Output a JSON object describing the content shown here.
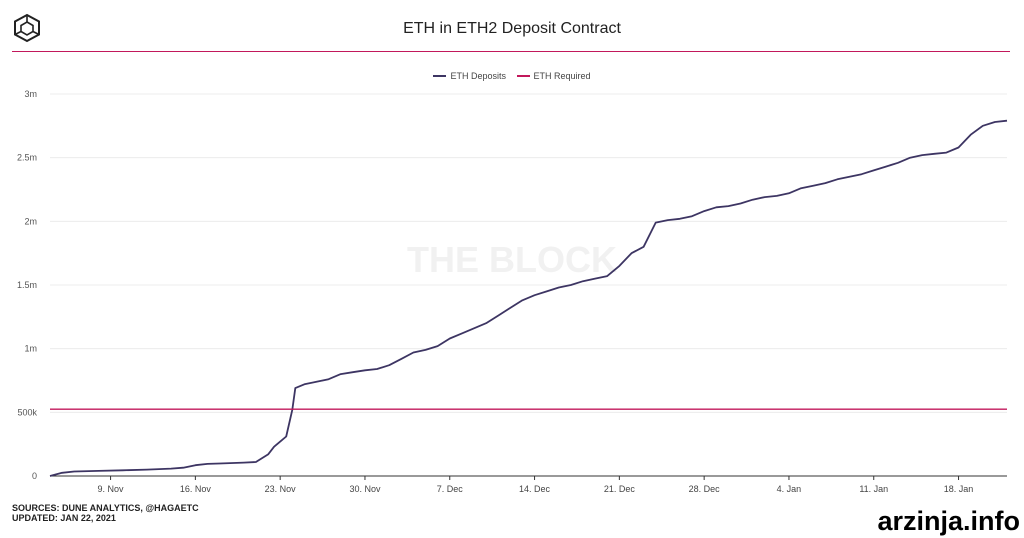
{
  "chart_data": {
    "type": "line",
    "title": "ETH in ETH2 Deposit Contract",
    "legend_position": "top-center",
    "grid": true,
    "x_range": [
      "Nov 4",
      "Jan 22"
    ],
    "x_ticks": [
      "9. Nov",
      "16. Nov",
      "23. Nov",
      "30. Nov",
      "7. Dec",
      "14. Dec",
      "21. Dec",
      "28. Dec",
      "4. Jan",
      "11. Jan",
      "18. Jan"
    ],
    "y_range": [
      0,
      3000000
    ],
    "y_ticks": [
      "0",
      "500k",
      "1m",
      "1.5m",
      "2m",
      "2.5m",
      "3m"
    ],
    "series": [
      {
        "name": "ETH Deposits",
        "color": "#3d3563",
        "points": [
          [
            "Nov 4",
            0
          ],
          [
            "Nov 5",
            25000
          ],
          [
            "Nov 6",
            35000
          ],
          [
            "Nov 8",
            40000
          ],
          [
            "Nov 10",
            45000
          ],
          [
            "Nov 12",
            50000
          ],
          [
            "Nov 14",
            58000
          ],
          [
            "Nov 15",
            65000
          ],
          [
            "Nov 16",
            85000
          ],
          [
            "Nov 17",
            95000
          ],
          [
            "Nov 18",
            98000
          ],
          [
            "Nov 20",
            105000
          ],
          [
            "Nov 21",
            110000
          ],
          [
            "Nov 22",
            170000
          ],
          [
            "Nov 22 12h",
            230000
          ],
          [
            "Nov 23",
            270000
          ],
          [
            "Nov 23 12h",
            310000
          ],
          [
            "Nov 24",
            520000
          ],
          [
            "Nov 24 6h",
            690000
          ],
          [
            "Nov 25",
            720000
          ],
          [
            "Nov 26",
            740000
          ],
          [
            "Nov 27",
            760000
          ],
          [
            "Nov 28",
            800000
          ],
          [
            "Nov 29",
            815000
          ],
          [
            "Nov 30",
            830000
          ],
          [
            "Dec 1",
            840000
          ],
          [
            "Dec 2",
            870000
          ],
          [
            "Dec 3",
            920000
          ],
          [
            "Dec 4",
            970000
          ],
          [
            "Dec 5",
            990000
          ],
          [
            "Dec 6",
            1020000
          ],
          [
            "Dec 7",
            1080000
          ],
          [
            "Dec 8",
            1120000
          ],
          [
            "Dec 9",
            1160000
          ],
          [
            "Dec 10",
            1200000
          ],
          [
            "Dec 11",
            1260000
          ],
          [
            "Dec 12",
            1320000
          ],
          [
            "Dec 13",
            1380000
          ],
          [
            "Dec 14",
            1420000
          ],
          [
            "Dec 15",
            1450000
          ],
          [
            "Dec 16",
            1480000
          ],
          [
            "Dec 17",
            1500000
          ],
          [
            "Dec 18",
            1530000
          ],
          [
            "Dec 19",
            1550000
          ],
          [
            "Dec 20",
            1570000
          ],
          [
            "Dec 21",
            1650000
          ],
          [
            "Dec 22",
            1750000
          ],
          [
            "Dec 23",
            1800000
          ],
          [
            "Dec 24",
            1990000
          ],
          [
            "Dec 25",
            2010000
          ],
          [
            "Dec 26",
            2020000
          ],
          [
            "Dec 27",
            2040000
          ],
          [
            "Dec 28",
            2080000
          ],
          [
            "Dec 29",
            2110000
          ],
          [
            "Dec 30",
            2120000
          ],
          [
            "Dec 31",
            2140000
          ],
          [
            "Jan 1",
            2170000
          ],
          [
            "Jan 2",
            2190000
          ],
          [
            "Jan 3",
            2200000
          ],
          [
            "Jan 4",
            2220000
          ],
          [
            "Jan 5",
            2260000
          ],
          [
            "Jan 6",
            2280000
          ],
          [
            "Jan 7",
            2300000
          ],
          [
            "Jan 8",
            2330000
          ],
          [
            "Jan 9",
            2350000
          ],
          [
            "Jan 10",
            2370000
          ],
          [
            "Jan 11",
            2400000
          ],
          [
            "Jan 12",
            2430000
          ],
          [
            "Jan 13",
            2460000
          ],
          [
            "Jan 14",
            2500000
          ],
          [
            "Jan 15",
            2520000
          ],
          [
            "Jan 16",
            2530000
          ],
          [
            "Jan 17",
            2540000
          ],
          [
            "Jan 18",
            2580000
          ],
          [
            "Jan 19",
            2680000
          ],
          [
            "Jan 20",
            2750000
          ],
          [
            "Jan 21",
            2780000
          ],
          [
            "Jan 22",
            2790000
          ]
        ]
      },
      {
        "name": "ETH Required",
        "color": "#c2185b",
        "points": [
          [
            "Nov 4",
            524288
          ],
          [
            "Jan 22",
            524288
          ]
        ]
      }
    ]
  },
  "footer": {
    "sources": "SOURCES: DUNE ANALYTICS, @HAGAETC",
    "updated": "UPDATED: JAN 22, 2021"
  },
  "watermarks": {
    "brand": "THE BLOCK",
    "site": "arzinja.info"
  }
}
